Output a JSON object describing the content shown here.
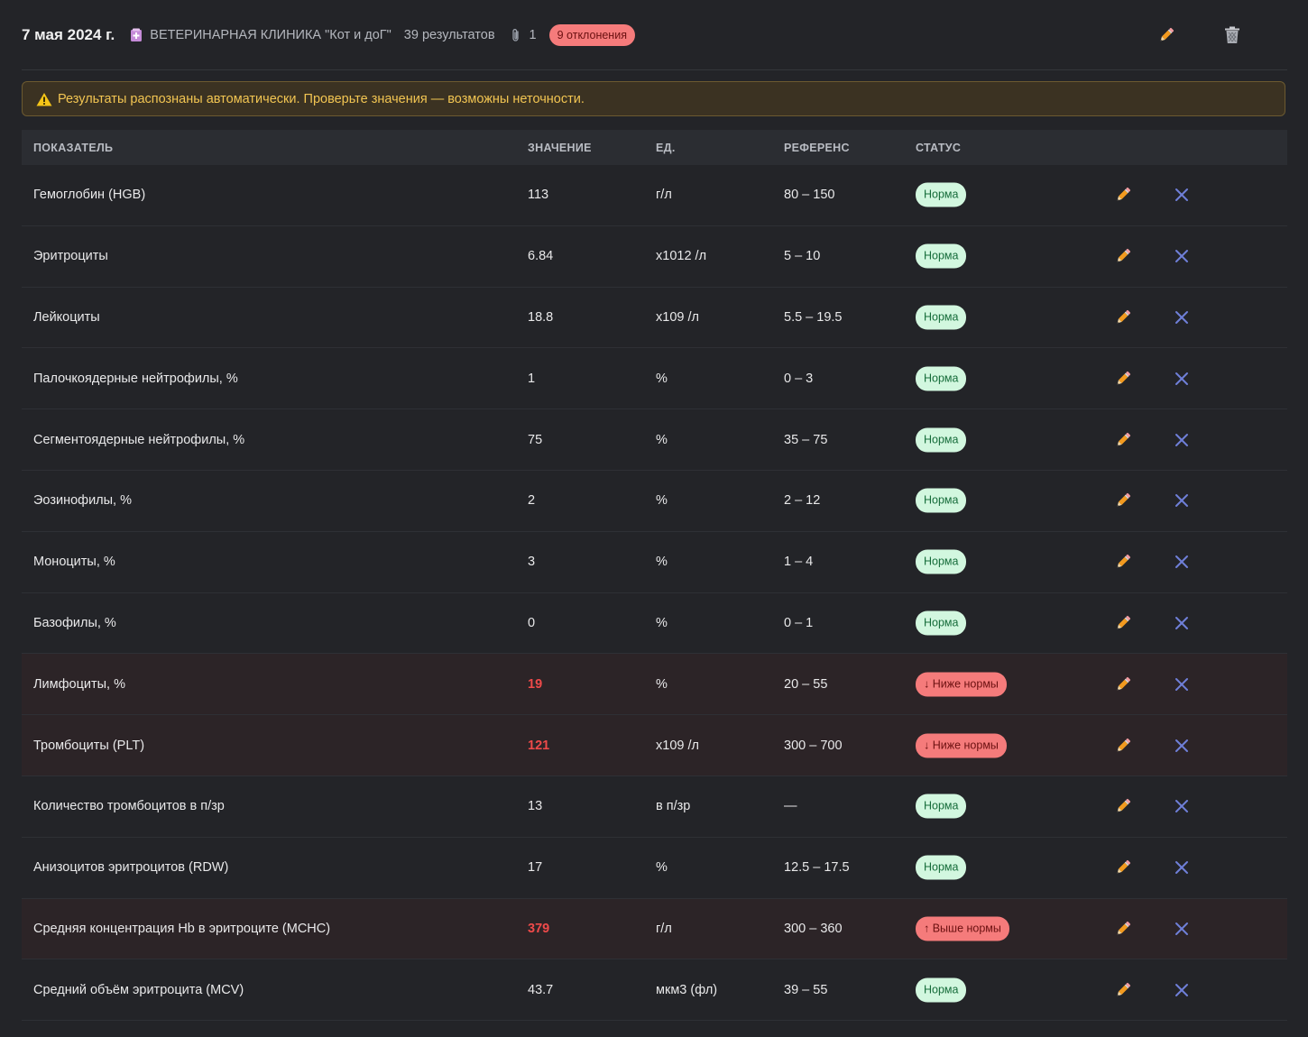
{
  "header": {
    "date": "7 мая 2024 г.",
    "clinic_icon": "clinic-icon",
    "clinic": "ВЕТЕРИНАРНАЯ КЛИНИКА \"Кот и доГ\"",
    "results_count": "39 результатов",
    "attach_icon": "paperclip-icon",
    "attachments": "1",
    "deviations_badge": "9 отклонения",
    "edit_icon": "pencil-icon",
    "delete_icon": "trash-icon"
  },
  "warning": {
    "icon": "warning-icon",
    "text": "Результаты распознаны автоматически. Проверьте значения — возможны неточности."
  },
  "table": {
    "headers": {
      "name": "ПОКАЗАТЕЛЬ",
      "value": "ЗНАЧЕНИЕ",
      "unit": "ЕД.",
      "reference": "РЕФЕРЕНС",
      "status": "СТАТУС"
    },
    "rows": [
      {
        "name": "Гемоглобин (HGB)",
        "value": "113",
        "unit": "г/л",
        "reference": "80 – 150",
        "status": "Норма",
        "kind": "norm"
      },
      {
        "name": "Эритроциты",
        "value": "6.84",
        "unit": "x1012 /л",
        "reference": "5 – 10",
        "status": "Норма",
        "kind": "norm"
      },
      {
        "name": "Лейкоциты",
        "value": "18.8",
        "unit": "x109 /л",
        "reference": "5.5 – 19.5",
        "status": "Норма",
        "kind": "norm"
      },
      {
        "name": "Палочкоядерные нейтрофилы, %",
        "value": "1",
        "unit": "%",
        "reference": "0 – 3",
        "status": "Норма",
        "kind": "norm"
      },
      {
        "name": "Сегментоядерные нейтрофилы, %",
        "value": "75",
        "unit": "%",
        "reference": "35 – 75",
        "status": "Норма",
        "kind": "norm"
      },
      {
        "name": "Эозинофилы, %",
        "value": "2",
        "unit": "%",
        "reference": "2 – 12",
        "status": "Норма",
        "kind": "norm"
      },
      {
        "name": "Моноциты, %",
        "value": "3",
        "unit": "%",
        "reference": "1 – 4",
        "status": "Норма",
        "kind": "norm"
      },
      {
        "name": "Базофилы, %",
        "value": "0",
        "unit": "%",
        "reference": "0 – 1",
        "status": "Норма",
        "kind": "norm"
      },
      {
        "name": "Лимфоциты, %",
        "value": "19",
        "unit": "%",
        "reference": "20 – 55",
        "status": "↓ Ниже нормы",
        "kind": "low"
      },
      {
        "name": "Тромбоциты (PLT)",
        "value": "121",
        "unit": "x109 /л",
        "reference": "300 – 700",
        "status": "↓ Ниже нормы",
        "kind": "low"
      },
      {
        "name": "Количество тромбоцитов в п/зр",
        "value": "13",
        "unit": "в п/зр",
        "reference": "—",
        "status": "Норма",
        "kind": "norm"
      },
      {
        "name": "Анизоцитов эритроцитов (RDW)",
        "value": "17",
        "unit": "%",
        "reference": "12.5 – 17.5",
        "status": "Норма",
        "kind": "norm"
      },
      {
        "name": "Средняя концентрация Hb в эритроците (MCHC)",
        "value": "379",
        "unit": "г/л",
        "reference": "300 – 360",
        "status": "↑ Выше нормы",
        "kind": "high"
      },
      {
        "name": "Средний объём эритроцита (MCV)",
        "value": "43.7",
        "unit": "мкм3 (фл)",
        "reference": "39 – 55",
        "status": "Норма",
        "kind": "norm"
      }
    ],
    "row_edit_icon": "pencil-icon",
    "row_delete_icon": "close-icon"
  },
  "colors": {
    "background": "#232428",
    "abnormal_row": "#2c2427",
    "abnormal_value": "#ef4a4a",
    "norm_badge": "#d2f7df",
    "deviation_badge": "#f57b7b",
    "warning_text": "#f2c552",
    "delete_icon": "#6f7fd8"
  }
}
